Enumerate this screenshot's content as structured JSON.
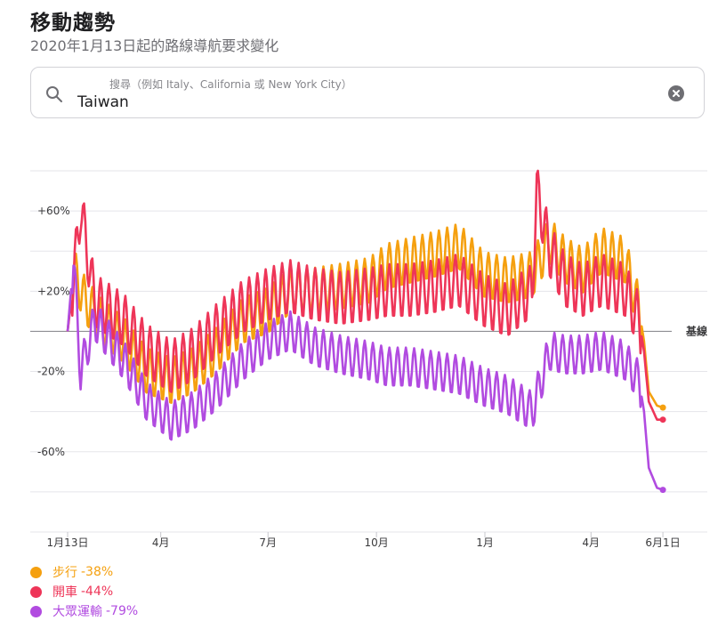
{
  "header": {
    "title": "移動趨勢",
    "subtitle": "2020年1月13日起的路線導航要求變化"
  },
  "search": {
    "placeholder": "搜尋（例如 Italy、California 或 New York City）",
    "value": "Taiwan"
  },
  "icons": {
    "search": "search-icon",
    "clear": "clear-icon"
  },
  "colors": {
    "walking": "#F5A00F",
    "driving": "#EE3558",
    "transit": "#B14BE0",
    "baseline": "#8e8e93",
    "grid": "#e5e5ea"
  },
  "legend": [
    {
      "key": "walking",
      "name": "步行",
      "value": "-38%"
    },
    {
      "key": "driving",
      "name": "開車",
      "value": "-44%"
    },
    {
      "key": "transit",
      "name": "大眾運輸",
      "value": "-79%"
    }
  ],
  "chart_data": {
    "type": "line",
    "title": "",
    "xlabel": "",
    "ylabel": "",
    "x_range": [
      "2020-01-13",
      "2021-06-10"
    ],
    "x_ticks": [
      {
        "date": "2020-01-13",
        "label": "1月13日"
      },
      {
        "date": "2020-04-01",
        "label": "4月"
      },
      {
        "date": "2020-07-01",
        "label": "7月"
      },
      {
        "date": "2020-10-01",
        "label": "10月"
      },
      {
        "date": "2021-01-01",
        "label": "1月"
      },
      {
        "date": "2021-04-01",
        "label": "4月"
      },
      {
        "date": "2021-06-01",
        "label": "6月1日"
      }
    ],
    "ylim": [
      -100,
      80
    ],
    "y_gridlines": [
      80,
      60,
      40,
      20,
      0,
      -20,
      -40,
      -60,
      -80,
      -100
    ],
    "y_tick_labels": [
      {
        "value": 60,
        "label": "+60%"
      },
      {
        "value": 20,
        "label": "+20%"
      },
      {
        "value": -20,
        "label": "-20%"
      },
      {
        "value": -60,
        "label": "-60%"
      }
    ],
    "baseline": {
      "value": 0,
      "label": "基線"
    },
    "series": [
      {
        "key": "walking",
        "name": "步行",
        "color": "#F5A00F",
        "points": [
          [
            "2020-01-13",
            0
          ],
          [
            "2020-01-18",
            30
          ],
          [
            "2020-01-28",
            15
          ],
          [
            "2020-02-10",
            5
          ],
          [
            "2020-03-01",
            -5
          ],
          [
            "2020-03-20",
            -20
          ],
          [
            "2020-04-10",
            -25
          ],
          [
            "2020-04-28",
            -20
          ],
          [
            "2020-05-18",
            -10
          ],
          [
            "2020-06-10",
            5
          ],
          [
            "2020-07-01",
            10
          ],
          [
            "2020-07-20",
            20
          ],
          [
            "2020-08-10",
            20
          ],
          [
            "2020-09-01",
            22
          ],
          [
            "2020-09-25",
            25
          ],
          [
            "2020-10-10",
            32
          ],
          [
            "2020-10-30",
            35
          ],
          [
            "2020-11-20",
            38
          ],
          [
            "2020-12-10",
            42
          ],
          [
            "2020-12-31",
            28
          ],
          [
            "2021-01-20",
            25
          ],
          [
            "2021-02-10",
            28
          ],
          [
            "2021-02-25",
            45
          ],
          [
            "2021-03-10",
            35
          ],
          [
            "2021-03-25",
            30
          ],
          [
            "2021-04-10",
            40
          ],
          [
            "2021-04-30",
            35
          ],
          [
            "2021-05-12",
            10
          ],
          [
            "2021-05-16",
            -5
          ],
          [
            "2021-05-20",
            -30
          ],
          [
            "2021-05-27",
            -37
          ],
          [
            "2021-06-01",
            -38
          ]
        ]
      },
      {
        "key": "driving",
        "name": "開車",
        "color": "#EE3558",
        "points": [
          [
            "2020-01-13",
            0
          ],
          [
            "2020-01-18",
            25
          ],
          [
            "2020-01-24",
            62
          ],
          [
            "2020-02-05",
            15
          ],
          [
            "2020-03-01",
            5
          ],
          [
            "2020-03-20",
            -10
          ],
          [
            "2020-04-10",
            -18
          ],
          [
            "2020-04-28",
            -12
          ],
          [
            "2020-05-18",
            0
          ],
          [
            "2020-06-10",
            12
          ],
          [
            "2020-07-01",
            18
          ],
          [
            "2020-07-20",
            22
          ],
          [
            "2020-08-10",
            18
          ],
          [
            "2020-09-01",
            16
          ],
          [
            "2020-09-25",
            18
          ],
          [
            "2020-10-10",
            20
          ],
          [
            "2020-10-30",
            20
          ],
          [
            "2020-11-20",
            22
          ],
          [
            "2020-12-10",
            25
          ],
          [
            "2020-12-31",
            15
          ],
          [
            "2021-01-20",
            10
          ],
          [
            "2021-02-10",
            20
          ],
          [
            "2021-02-14",
            70
          ],
          [
            "2021-02-25",
            40
          ],
          [
            "2021-03-10",
            25
          ],
          [
            "2021-03-25",
            20
          ],
          [
            "2021-04-10",
            25
          ],
          [
            "2021-04-30",
            20
          ],
          [
            "2021-05-12",
            5
          ],
          [
            "2021-05-16",
            -10
          ],
          [
            "2021-05-20",
            -35
          ],
          [
            "2021-05-27",
            -44
          ],
          [
            "2021-06-01",
            -44
          ]
        ]
      },
      {
        "key": "transit",
        "name": "大眾運輸",
        "color": "#B14BE0",
        "points": [
          [
            "2020-01-13",
            0
          ],
          [
            "2020-01-18",
            35
          ],
          [
            "2020-01-24",
            -20
          ],
          [
            "2020-02-05",
            5
          ],
          [
            "2020-03-01",
            -15
          ],
          [
            "2020-03-20",
            -35
          ],
          [
            "2020-04-10",
            -45
          ],
          [
            "2020-04-28",
            -40
          ],
          [
            "2020-05-18",
            -30
          ],
          [
            "2020-06-10",
            -15
          ],
          [
            "2020-07-01",
            -5
          ],
          [
            "2020-07-20",
            0
          ],
          [
            "2020-08-10",
            -8
          ],
          [
            "2020-09-01",
            -12
          ],
          [
            "2020-09-25",
            -15
          ],
          [
            "2020-10-10",
            -18
          ],
          [
            "2020-10-30",
            -18
          ],
          [
            "2020-11-20",
            -20
          ],
          [
            "2020-12-10",
            -22
          ],
          [
            "2020-12-31",
            -28
          ],
          [
            "2021-01-20",
            -32
          ],
          [
            "2021-02-10",
            -40
          ],
          [
            "2021-02-25",
            -10
          ],
          [
            "2021-03-10",
            -12
          ],
          [
            "2021-03-25",
            -12
          ],
          [
            "2021-04-10",
            -10
          ],
          [
            "2021-04-30",
            -15
          ],
          [
            "2021-05-12",
            -25
          ],
          [
            "2021-05-16",
            -40
          ],
          [
            "2021-05-20",
            -68
          ],
          [
            "2021-05-27",
            -78
          ],
          [
            "2021-06-01",
            -79
          ]
        ]
      }
    ]
  }
}
